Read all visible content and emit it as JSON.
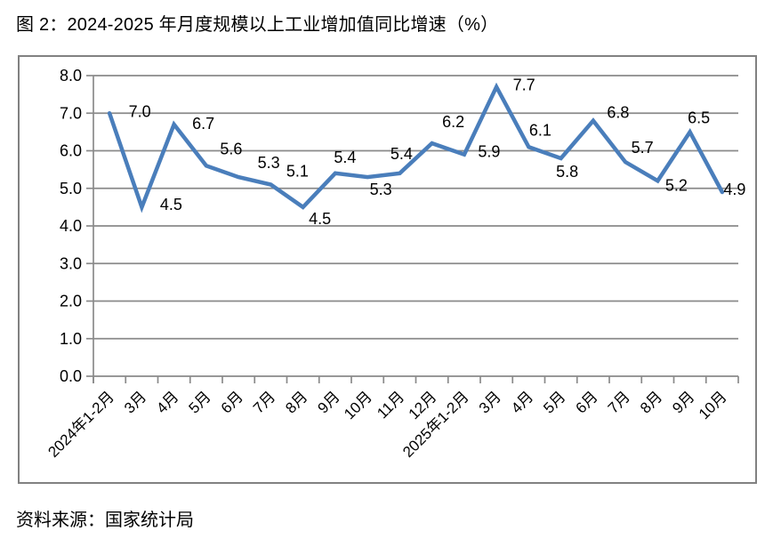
{
  "page": {
    "title": "图 2：2024-2025 年月度规模以上工业增加值同比增速（%）",
    "source": "资料来源：国家统计局"
  },
  "chart_data": {
    "type": "line",
    "title": "图 2：2024-2025 年月度规模以上工业增加值同比增速（%）",
    "xlabel": "",
    "ylabel": "",
    "categories": [
      "2024年1-2月",
      "3月",
      "4月",
      "5月",
      "6月",
      "7月",
      "8月",
      "9月",
      "10月",
      "11月",
      "12月",
      "2025年1-2月",
      "3月",
      "4月",
      "5月",
      "6月",
      "7月",
      "8月",
      "9月",
      "10月"
    ],
    "values": [
      7.0,
      4.5,
      6.7,
      5.6,
      5.3,
      5.1,
      4.5,
      5.4,
      5.3,
      5.4,
      6.2,
      5.9,
      7.7,
      6.1,
      5.8,
      6.8,
      5.7,
      5.2,
      6.5,
      4.9
    ],
    "data_labels": [
      "7.0",
      "4.5",
      "6.7",
      "5.6",
      "5.3",
      "5.1",
      "4.5",
      "5.4",
      "5.3",
      "5.4",
      "6.2",
      "5.9",
      "7.7",
      "6.1",
      "5.8",
      "6.8",
      "5.7",
      "5.2",
      "6.5",
      "4.9"
    ],
    "ylim": [
      0,
      8
    ],
    "ytick_step": 1.0,
    "ytick_labels": [
      "0.0",
      "1.0",
      "2.0",
      "3.0",
      "4.0",
      "5.0",
      "6.0",
      "7.0",
      "8.0"
    ],
    "grid": true,
    "legend": "none",
    "colors": {
      "line": "#4A7EBB",
      "grid": "#8A8A8A",
      "axis": "#8A8A8A",
      "border": "#818181",
      "text": "#000000"
    }
  }
}
